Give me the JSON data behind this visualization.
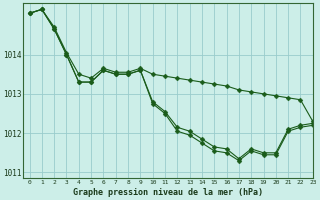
{
  "title": "Graphe pression niveau de la mer (hPa)",
  "background_color": "#cceee8",
  "grid_color": "#99cccc",
  "line_color": "#1a5c1a",
  "xlim": [
    -0.5,
    23
  ],
  "ylim": [
    1010.85,
    1015.3
  ],
  "yticks": [
    1011,
    1012,
    1013,
    1014
  ],
  "xticks": [
    0,
    1,
    2,
    3,
    4,
    5,
    6,
    7,
    8,
    9,
    10,
    11,
    12,
    13,
    14,
    15,
    16,
    17,
    18,
    19,
    20,
    21,
    22,
    23
  ],
  "upper_line": [
    1015.05,
    1015.15,
    1014.7,
    1014.05,
    1013.5,
    1013.4,
    1013.65,
    1013.55,
    1013.55,
    1013.65,
    1013.5,
    1013.45,
    1013.4,
    1013.35,
    1013.3,
    1013.25,
    1013.2,
    1013.1,
    1013.05,
    1013.0,
    1012.95,
    1012.9,
    1012.85,
    1012.3
  ],
  "mid_line": [
    1015.05,
    1015.15,
    1014.65,
    1014.0,
    1013.3,
    1013.3,
    1013.6,
    1013.5,
    1013.5,
    1013.6,
    1012.8,
    1012.55,
    1012.15,
    1012.05,
    1011.85,
    1011.65,
    1011.6,
    1011.35,
    1011.6,
    1011.5,
    1011.5,
    1012.1,
    1012.2,
    1012.25
  ],
  "lower_line": [
    1015.05,
    1015.15,
    1014.65,
    1014.0,
    1013.3,
    1013.3,
    1013.6,
    1013.5,
    1013.5,
    1013.6,
    1012.75,
    1012.5,
    1012.05,
    1011.95,
    1011.75,
    1011.55,
    1011.5,
    1011.3,
    1011.55,
    1011.45,
    1011.45,
    1012.05,
    1012.15,
    1012.2
  ],
  "marker_size": 2.5,
  "linewidth": 0.8
}
